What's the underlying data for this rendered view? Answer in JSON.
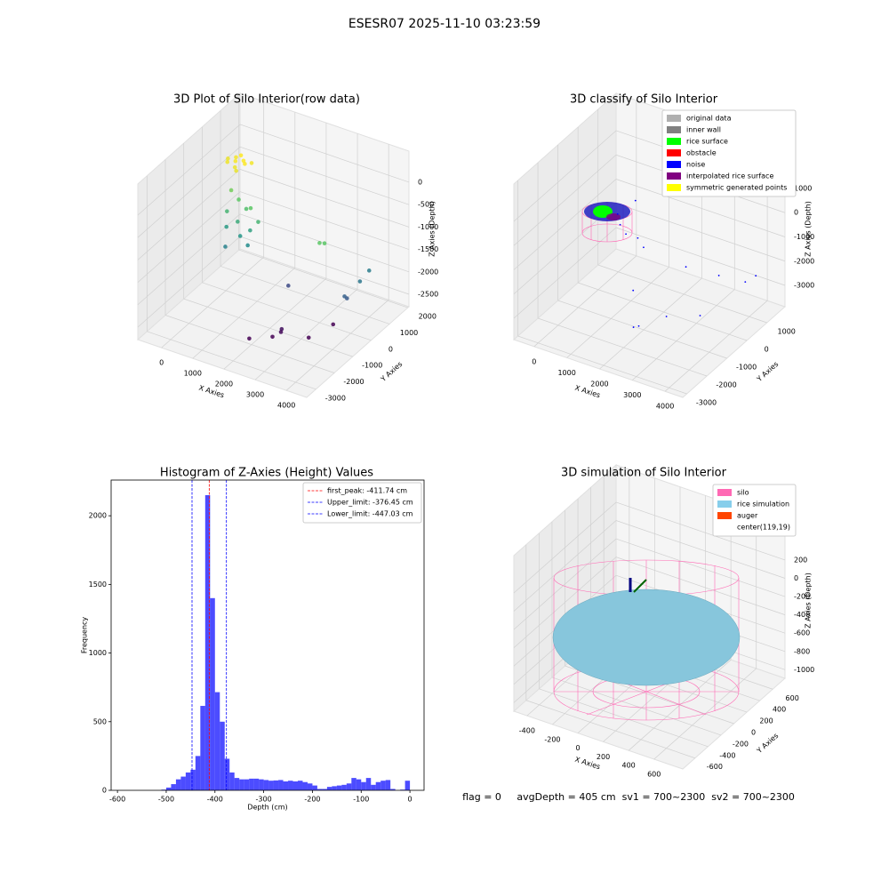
{
  "title": "ESESR07 2025-11-10 03:23:59",
  "chart_data": [
    {
      "type": "scatter3d",
      "title": "3D Plot of Silo Interior(row data)",
      "xlabel": "X Axies",
      "ylabel": "Y Axies",
      "zlabel": "Z Axies (Depth)",
      "colormap": "viridis",
      "xlim": [
        -760,
        4650
      ],
      "ylim": [
        -3500,
        2060
      ],
      "zlim": [
        -2778,
        694
      ],
      "xticks": [
        0,
        1000,
        2000,
        3000,
        4000
      ],
      "yticks": [
        -3000,
        -2000,
        -1000,
        0,
        1000,
        2000
      ],
      "zticks": [
        0,
        -500,
        -1000,
        -1500,
        -2000,
        -2500
      ],
      "x": [
        -600,
        -400,
        -200,
        -500,
        -300,
        -100,
        -700,
        0,
        -400,
        -200,
        -300,
        0,
        300,
        -200,
        200,
        500,
        600,
        400,
        -100,
        800,
        700,
        100,
        3000,
        3100,
        4000,
        4000,
        3800,
        3850,
        2000,
        1880,
        2370,
        2500,
        2500,
        3230,
        3450
      ],
      "y": [
        1100,
        1200,
        1300,
        1400,
        1000,
        1200,
        1300,
        1400,
        1500,
        900,
        800,
        700,
        600,
        400,
        300,
        500,
        300,
        100,
        200,
        400,
        0,
        -200,
        0,
        100,
        1000,
        500,
        0,
        50,
        0,
        -1920,
        -1490,
        -1210,
        -1250,
        -980,
        -24
      ],
      "z": [
        -450,
        -420,
        -400,
        -430,
        -460,
        -410,
        -470,
        -440,
        -400,
        -480,
        -900,
        -1000,
        -1100,
        -1200,
        -1300,
        -1000,
        -1400,
        -1500,
        -1450,
        -1200,
        -1600,
        -1700,
        -1000,
        -1020,
        -1740,
        -1800,
        -2000,
        -2050,
        -2190,
        -2700,
        -2700,
        -2600,
        -2650,
        -2700,
        -2700
      ]
    },
    {
      "type": "scatter3d",
      "title": "3D classify of Silo Interior",
      "xlabel": "X Axies",
      "ylabel": "Y Axies",
      "zlabel": "Z Axies (Depth)",
      "color": "#0000ff",
      "xlim": [
        -620,
        4540
      ],
      "ylim": [
        -3200,
        1900
      ],
      "zlim": [
        -3880,
        2540
      ],
      "xticks": [
        0,
        1000,
        2000,
        3000,
        4000
      ],
      "yticks": [
        -3000,
        -2000,
        -1000,
        0,
        1000
      ],
      "zticks": [
        -3000,
        -2000,
        -1000,
        0,
        1000
      ],
      "x": [
        2800,
        3500,
        4000,
        4200,
        3000,
        2300,
        2400,
        1800,
        3600,
        100,
        600,
        900,
        300,
        1200,
        400
      ],
      "y": [
        -200,
        300,
        800,
        1000,
        -1500,
        -2000,
        -1900,
        -1200,
        -800,
        800,
        400,
        500,
        600,
        300,
        1200
      ],
      "z": [
        -1500,
        -1900,
        -2300,
        -2100,
        -2500,
        -2900,
        -2880,
        -2200,
        -2700,
        -1300,
        -1600,
        -1700,
        -1500,
        -1800,
        -900
      ],
      "legend": [
        {
          "name": "original data",
          "color": "#b0b0b0"
        },
        {
          "name": "inner wall",
          "color": "#808080"
        },
        {
          "name": "rice surface",
          "color": "#00ff00"
        },
        {
          "name": "obstacle",
          "color": "#ff0000"
        },
        {
          "name": "noise",
          "color": "#0000ff"
        },
        {
          "name": "interpolated rice surface",
          "color": "#800080"
        },
        {
          "name": "symmetric generated points",
          "color": "#ffff00"
        }
      ]
    },
    {
      "type": "histogram",
      "title": "Histogram of Z-Axies (Height) Values",
      "xlabel": "Depth (cm)",
      "ylabel": "Frequency",
      "color": "#0000ff",
      "alpha": 0.7,
      "xlim": [
        -613,
        29
      ],
      "ylim": [
        0,
        2260
      ],
      "xticks": [
        -600,
        -500,
        -400,
        -300,
        -200,
        -100,
        0
      ],
      "yticks": [
        0,
        500,
        1000,
        1500,
        2000
      ],
      "bins": [
        -510,
        -500,
        -490,
        -480,
        -470,
        -460,
        -450,
        -440,
        -430,
        -420,
        -410,
        -400,
        -390,
        -380,
        -370,
        -360,
        -350,
        -340,
        -330,
        -320,
        -310,
        -300,
        -290,
        -280,
        -270,
        -260,
        -250,
        -240,
        -230,
        -220,
        -210,
        -200,
        -190,
        -180,
        -170,
        -160,
        -150,
        -140,
        -130,
        -120,
        -110,
        -100,
        -90,
        -80,
        -70,
        -60,
        -50,
        -40,
        -30,
        -20,
        -10,
        0
      ],
      "counts": [
        5,
        20,
        45,
        80,
        100,
        130,
        150,
        250,
        615,
        2150,
        1400,
        715,
        500,
        230,
        130,
        90,
        80,
        80,
        85,
        85,
        80,
        75,
        70,
        72,
        75,
        65,
        70,
        65,
        70,
        60,
        50,
        35,
        10,
        10,
        25,
        30,
        35,
        40,
        50,
        90,
        80,
        60,
        90,
        40,
        60,
        70,
        75,
        10,
        0,
        5,
        70
      ],
      "vlines": [
        {
          "name": "first_peak: -411.74 cm",
          "value": -411.74,
          "color": "#ff0000"
        },
        {
          "name": "Upper_limit: -376.45 cm",
          "value": -376.45,
          "color": "#0000ff"
        },
        {
          "name": "Lower_limit: -447.03 cm",
          "value": -447.03,
          "color": "#0000ff"
        }
      ]
    },
    {
      "type": "surface3d",
      "title": "3D simulation of Silo Interior",
      "xlabel": "X Axies",
      "ylabel": "Y Axies",
      "zlabel": "Z Axies (Depth)",
      "xlim": [
        -504,
        826
      ],
      "ylim": [
        -790,
        790
      ],
      "zlim": [
        -1094,
        608
      ],
      "xticks": [
        -400,
        -200,
        0,
        200,
        400,
        600
      ],
      "yticks": [
        -600,
        -400,
        -200,
        0,
        200,
        400,
        600
      ],
      "zticks": [
        -1000,
        -800,
        -600,
        -400,
        -200,
        0,
        200
      ],
      "legend": [
        {
          "name": "silo",
          "color": "#ff69b4"
        },
        {
          "name": "rice simulation",
          "color": "#87ceeb"
        },
        {
          "name": "auger",
          "color": "#ff4500"
        },
        {
          "name": "center(119,19)",
          "color": "#ffffff"
        }
      ],
      "annotation": "flag = 0     avgDepth = 405 cm  sv1 = 700~2300  sv2 = 700~2300"
    }
  ]
}
